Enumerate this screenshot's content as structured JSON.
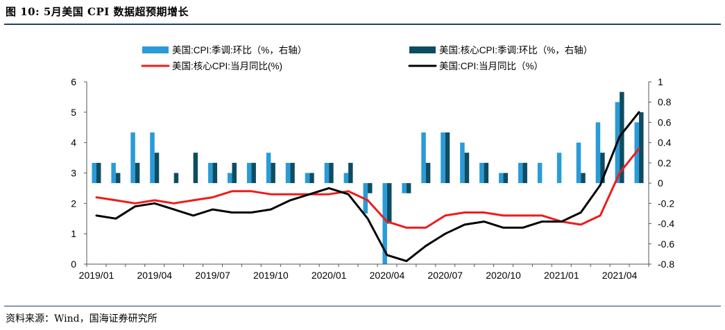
{
  "figure_title": "图 10: 5月美国 CPI 数据超预期增长",
  "source": "资料来源：Wind，国海证券研究所",
  "colors": {
    "headline_mom": "#2a9bd8",
    "core_mom": "#0d4d62",
    "core_yoy": "#ee1c1c",
    "headline_yoy": "#000000",
    "rule": "#1f3f6e"
  },
  "chart_data": {
    "type": "bar+line",
    "legend_position": "top",
    "grid": false,
    "left_axis": {
      "range": [
        0,
        6
      ],
      "ticks": [
        "0",
        "1",
        "2",
        "3",
        "4",
        "5",
        "6"
      ]
    },
    "right_axis": {
      "range": [
        -0.8,
        1
      ],
      "ticks": [
        "-0.8",
        "-0.6",
        "-0.4",
        "-0.2",
        "0",
        "0.2",
        "0.4",
        "0.6",
        "0.8",
        "1"
      ]
    },
    "x_ticks": [
      "2019/01",
      "2019/04",
      "2019/07",
      "2019/10",
      "2020/01",
      "2020/04",
      "2020/07",
      "2020/10",
      "2021/01",
      "2021/04"
    ],
    "x": [
      "2019/01",
      "2019/02",
      "2019/03",
      "2019/04",
      "2019/05",
      "2019/06",
      "2019/07",
      "2019/08",
      "2019/09",
      "2019/10",
      "2019/11",
      "2019/12",
      "2020/01",
      "2020/02",
      "2020/03",
      "2020/04",
      "2020/05",
      "2020/06",
      "2020/07",
      "2020/08",
      "2020/09",
      "2020/10",
      "2020/11",
      "2020/12",
      "2021/01",
      "2021/02",
      "2021/03",
      "2021/04",
      "2021/05"
    ],
    "series": [
      {
        "name": "美国:CPI:季调:环比（%，右轴）",
        "type": "bar",
        "axis": "right",
        "values": [
          0.2,
          0.2,
          0.5,
          0.5,
          0.0,
          0.0,
          0.2,
          0.1,
          0.2,
          0.3,
          0.2,
          0.1,
          0.2,
          0.1,
          -0.3,
          -0.8,
          -0.1,
          0.5,
          0.5,
          0.4,
          0.2,
          0.1,
          0.2,
          0.2,
          0.3,
          0.4,
          0.6,
          0.8,
          0.6
        ]
      },
      {
        "name": "美国:核心CPI:季调:环比（%，右轴）",
        "type": "bar",
        "axis": "right",
        "values": [
          0.2,
          0.1,
          0.2,
          0.3,
          0.1,
          0.3,
          0.2,
          0.2,
          0.2,
          0.2,
          0.2,
          0.1,
          0.2,
          0.2,
          -0.1,
          -0.4,
          -0.1,
          0.2,
          0.5,
          0.3,
          0.2,
          0.1,
          0.2,
          0.0,
          0.0,
          0.1,
          0.3,
          0.9,
          0.7
        ]
      },
      {
        "name": "美国:核心CPI:当月同比(%)",
        "type": "line",
        "axis": "left",
        "values": [
          2.2,
          2.1,
          2.0,
          2.1,
          2.0,
          2.1,
          2.2,
          2.4,
          2.4,
          2.3,
          2.3,
          2.3,
          2.3,
          2.4,
          2.1,
          1.4,
          1.2,
          1.2,
          1.6,
          1.7,
          1.7,
          1.6,
          1.6,
          1.6,
          1.4,
          1.3,
          1.6,
          3.0,
          3.8
        ]
      },
      {
        "name": "美国:CPI:当月同比（%）",
        "type": "line",
        "axis": "left",
        "values": [
          1.6,
          1.5,
          1.9,
          2.0,
          1.8,
          1.6,
          1.8,
          1.7,
          1.7,
          1.8,
          2.1,
          2.3,
          2.5,
          2.3,
          1.5,
          0.3,
          0.1,
          0.6,
          1.0,
          1.3,
          1.4,
          1.2,
          1.2,
          1.4,
          1.4,
          1.7,
          2.6,
          4.2,
          5.0
        ]
      }
    ]
  }
}
